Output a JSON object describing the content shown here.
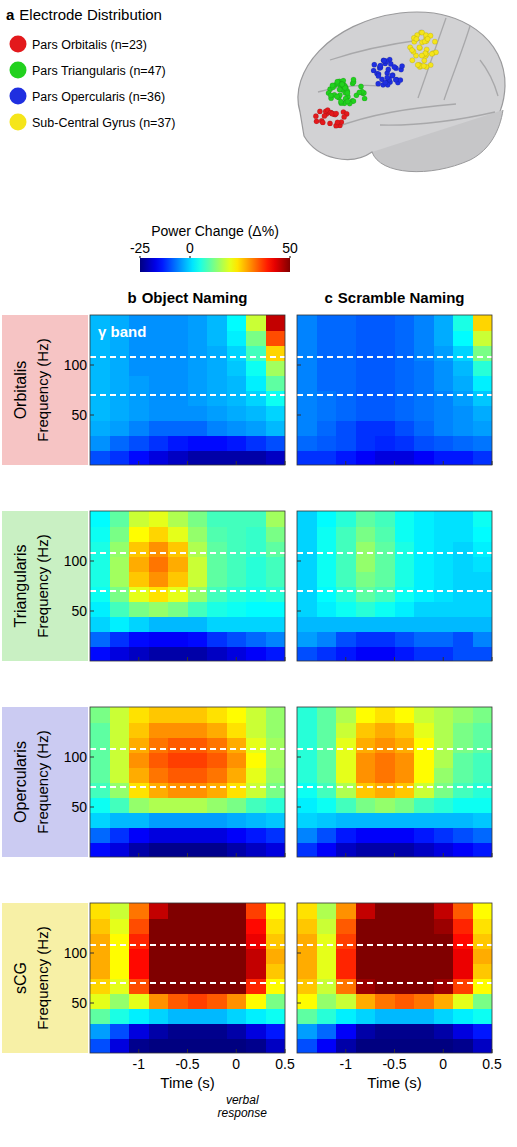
{
  "figure": {
    "panel_a": {
      "letter": "a",
      "title": "Electrode Distribution",
      "regions": [
        {
          "label": "Pars Orbitalis (n=23)",
          "color": "#e3191c",
          "electrodes": 23
        },
        {
          "label": "Pars Triangularis (n=47)",
          "color": "#22d11e",
          "electrodes": 47
        },
        {
          "label": "Pars Opercularis (n=36)",
          "color": "#1f2fe0",
          "electrodes": 36
        },
        {
          "label": "Sub-Central Gyrus (n=37)",
          "color": "#f5e51a",
          "electrodes": 37
        }
      ]
    },
    "colorbar": {
      "title": "Power Change (Δ%)",
      "range": [
        -25,
        50
      ],
      "ticks": [
        -25,
        0,
        50
      ]
    },
    "columns": [
      {
        "letter": "b",
        "title": "Object Naming"
      },
      {
        "letter": "c",
        "title": "Scramble Naming"
      }
    ],
    "rows": [
      {
        "label": "Orbitalis",
        "color": "#f6c4c4"
      },
      {
        "label": "Triangularis",
        "color": "#c9f0c3"
      },
      {
        "label": "Opercularis",
        "color": "#cbcbf2"
      },
      {
        "label": "sCG",
        "color": "#f7f0a6"
      }
    ],
    "ylabel": "Frequency (Hz)",
    "xlabel": "Time (s)",
    "xnote": "verbal response",
    "band_label": "γ band",
    "band_lines": [
      70,
      108
    ]
  },
  "chart_data": [
    {
      "type": "heatmap",
      "tick_labels": "y",
      "x": [
        -1.4,
        -1.2,
        -1.0,
        -0.8,
        -0.6,
        -0.4,
        -0.2,
        0,
        0.2,
        0.4
      ],
      "y": [
        7.5,
        22.5,
        37.5,
        52.5,
        67.5,
        82.5,
        97.5,
        112.5,
        127.5,
        142.5
      ],
      "xlim": [
        -1.5,
        0.5
      ],
      "ylim": [
        0,
        150
      ],
      "xticks": [
        -1,
        -0.5,
        0,
        0.5
      ],
      "yticks": [
        50,
        100
      ],
      "values": [
        [
          -10,
          -12,
          -15,
          -18,
          -20,
          -22,
          -22,
          -22,
          -22,
          -20
        ],
        [
          -5,
          -8,
          -10,
          -12,
          -14,
          -15,
          -15,
          -14,
          -12,
          -10
        ],
        [
          -3,
          -4,
          -6,
          -8,
          -8,
          -8,
          -6,
          -5,
          -4,
          -2
        ],
        [
          -2,
          -3,
          -4,
          -5,
          -5,
          -5,
          -4,
          -3,
          -2,
          0
        ],
        [
          -2,
          -3,
          -4,
          -5,
          -5,
          -4,
          -3,
          -2,
          0,
          4
        ],
        [
          -2,
          -3,
          -4,
          -5,
          -5,
          -4,
          -3,
          -2,
          2,
          10
        ],
        [
          -2,
          -3,
          -5,
          -5,
          -5,
          -4,
          -3,
          -1,
          4,
          15
        ],
        [
          -2,
          -3,
          -5,
          -5,
          -5,
          -4,
          -3,
          0,
          8,
          25
        ],
        [
          -2,
          -3,
          -5,
          -5,
          -5,
          -4,
          -2,
          2,
          12,
          35
        ],
        [
          -2,
          -3,
          -5,
          -5,
          -5,
          -4,
          -2,
          3,
          18,
          45
        ]
      ]
    },
    {
      "type": "heatmap",
      "tick_labels": false,
      "x": [
        -1.4,
        -1.2,
        -1.0,
        -0.8,
        -0.6,
        -0.4,
        -0.2,
        0,
        0.2,
        0.4
      ],
      "y": [
        7.5,
        22.5,
        37.5,
        52.5,
        67.5,
        82.5,
        97.5,
        112.5,
        127.5,
        142.5
      ],
      "xlim": [
        -1.5,
        0.5
      ],
      "ylim": [
        0,
        150
      ],
      "xticks": [
        -1,
        -0.5,
        0,
        0.5
      ],
      "yticks": [
        50,
        100
      ],
      "values": [
        [
          -12,
          -12,
          -14,
          -16,
          -18,
          -18,
          -16,
          -14,
          -14,
          -12
        ],
        [
          -8,
          -9,
          -10,
          -12,
          -13,
          -12,
          -10,
          -9,
          -8,
          -7
        ],
        [
          -6,
          -8,
          -10,
          -12,
          -12,
          -10,
          -8,
          -6,
          -5,
          -4
        ],
        [
          -6,
          -7,
          -8,
          -9,
          -9,
          -8,
          -7,
          -6,
          -5,
          -3
        ],
        [
          -6,
          -7,
          -8,
          -9,
          -9,
          -8,
          -7,
          -6,
          -4,
          -1
        ],
        [
          -6,
          -8,
          -8,
          -9,
          -9,
          -8,
          -7,
          -5,
          -3,
          2
        ],
        [
          -6,
          -8,
          -8,
          -9,
          -9,
          -8,
          -7,
          -5,
          -2,
          6
        ],
        [
          -6,
          -8,
          -8,
          -9,
          -9,
          -8,
          -6,
          -4,
          0,
          12
        ],
        [
          -6,
          -8,
          -8,
          -9,
          -9,
          -8,
          -6,
          -3,
          3,
          18
        ],
        [
          -6,
          -8,
          -8,
          -9,
          -9,
          -8,
          -6,
          -3,
          5,
          25
        ]
      ]
    },
    {
      "type": "heatmap",
      "tick_labels": "y",
      "x": [
        -1.4,
        -1.2,
        -1.0,
        -0.8,
        -0.6,
        -0.4,
        -0.2,
        0,
        0.2,
        0.4
      ],
      "y": [
        7.5,
        22.5,
        37.5,
        52.5,
        67.5,
        82.5,
        97.5,
        112.5,
        127.5,
        142.5
      ],
      "xlim": [
        -1.5,
        0.5
      ],
      "ylim": [
        0,
        150
      ],
      "xticks": [
        -1,
        -0.5,
        0,
        0.5
      ],
      "yticks": [
        50,
        100
      ],
      "values": [
        [
          -15,
          -18,
          -20,
          -22,
          -22,
          -22,
          -20,
          -18,
          -16,
          -14
        ],
        [
          -8,
          -12,
          -15,
          -16,
          -16,
          -15,
          -12,
          -10,
          -8,
          -6
        ],
        [
          0,
          2,
          0,
          -2,
          -2,
          -2,
          0,
          0,
          0,
          0
        ],
        [
          2,
          8,
          12,
          14,
          12,
          8,
          5,
          4,
          3,
          3
        ],
        [
          4,
          12,
          20,
          24,
          20,
          14,
          8,
          6,
          5,
          6
        ],
        [
          5,
          15,
          26,
          30,
          26,
          18,
          10,
          8,
          6,
          8
        ],
        [
          5,
          15,
          28,
          32,
          28,
          18,
          10,
          8,
          6,
          8
        ],
        [
          5,
          14,
          26,
          30,
          26,
          16,
          10,
          8,
          7,
          10
        ],
        [
          4,
          12,
          22,
          25,
          20,
          14,
          9,
          8,
          7,
          12
        ],
        [
          3,
          10,
          18,
          20,
          16,
          12,
          8,
          8,
          8,
          15
        ]
      ]
    },
    {
      "type": "heatmap",
      "tick_labels": false,
      "x": [
        -1.4,
        -1.2,
        -1.0,
        -0.8,
        -0.6,
        -0.4,
        -0.2,
        0,
        0.2,
        0.4
      ],
      "y": [
        7.5,
        22.5,
        37.5,
        52.5,
        67.5,
        82.5,
        97.5,
        112.5,
        127.5,
        142.5
      ],
      "xlim": [
        -1.5,
        0.5
      ],
      "ylim": [
        0,
        150
      ],
      "xticks": [
        -1,
        -0.5,
        0,
        0.5
      ],
      "yticks": [
        50,
        100
      ],
      "values": [
        [
          -10,
          -12,
          -14,
          -16,
          -16,
          -14,
          -12,
          -12,
          -10,
          -10
        ],
        [
          -4,
          -6,
          -10,
          -12,
          -12,
          -10,
          -8,
          -8,
          -10,
          -6
        ],
        [
          -2,
          -2,
          -2,
          -2,
          -2,
          -2,
          -2,
          -2,
          -2,
          -2
        ],
        [
          0,
          2,
          4,
          6,
          4,
          2,
          0,
          0,
          0,
          0
        ],
        [
          0,
          3,
          6,
          10,
          8,
          4,
          2,
          1,
          0,
          0
        ],
        [
          0,
          4,
          8,
          12,
          10,
          5,
          2,
          1,
          0,
          0
        ],
        [
          0,
          4,
          8,
          14,
          10,
          5,
          2,
          1,
          0,
          1
        ],
        [
          0,
          4,
          8,
          14,
          10,
          5,
          2,
          1,
          0,
          2
        ],
        [
          0,
          4,
          8,
          12,
          9,
          4,
          2,
          1,
          1,
          3
        ],
        [
          0,
          3,
          6,
          10,
          8,
          4,
          2,
          1,
          1,
          4
        ]
      ]
    },
    {
      "type": "heatmap",
      "tick_labels": "y",
      "x": [
        -1.4,
        -1.2,
        -1.0,
        -0.8,
        -0.6,
        -0.4,
        -0.2,
        0,
        0.2,
        0.4
      ],
      "y": [
        7.5,
        22.5,
        37.5,
        52.5,
        67.5,
        82.5,
        97.5,
        112.5,
        127.5,
        142.5
      ],
      "xlim": [
        -1.5,
        0.5
      ],
      "ylim": [
        0,
        150
      ],
      "xticks": [
        -1,
        -0.5,
        0,
        0.5
      ],
      "yticks": [
        50,
        100
      ],
      "values": [
        [
          -15,
          -18,
          -22,
          -24,
          -24,
          -24,
          -24,
          -22,
          -20,
          -18
        ],
        [
          -8,
          -12,
          -16,
          -18,
          -18,
          -18,
          -18,
          -16,
          -14,
          -12
        ],
        [
          0,
          -2,
          -2,
          -4,
          -4,
          -4,
          -4,
          -3,
          -2,
          -1
        ],
        [
          4,
          8,
          14,
          16,
          16,
          16,
          14,
          12,
          8,
          6
        ],
        [
          8,
          14,
          24,
          28,
          30,
          30,
          28,
          24,
          18,
          12
        ],
        [
          10,
          18,
          28,
          32,
          34,
          34,
          32,
          28,
          20,
          14
        ],
        [
          10,
          18,
          30,
          34,
          36,
          36,
          34,
          30,
          22,
          15
        ],
        [
          10,
          18,
          28,
          32,
          34,
          34,
          32,
          28,
          20,
          15
        ],
        [
          10,
          18,
          26,
          30,
          30,
          30,
          28,
          24,
          18,
          14
        ],
        [
          12,
          18,
          24,
          26,
          26,
          26,
          24,
          22,
          18,
          14
        ]
      ]
    },
    {
      "type": "heatmap",
      "tick_labels": false,
      "x": [
        -1.4,
        -1.2,
        -1.0,
        -0.8,
        -0.6,
        -0.4,
        -0.2,
        0,
        0.2,
        0.4
      ],
      "y": [
        7.5,
        22.5,
        37.5,
        52.5,
        67.5,
        82.5,
        97.5,
        112.5,
        127.5,
        142.5
      ],
      "xlim": [
        -1.5,
        0.5
      ],
      "ylim": [
        0,
        150
      ],
      "xticks": [
        -1,
        -0.5,
        0,
        0.5
      ],
      "yticks": [
        50,
        100
      ],
      "values": [
        [
          -12,
          -16,
          -20,
          -22,
          -22,
          -22,
          -20,
          -18,
          -16,
          -14
        ],
        [
          -6,
          -10,
          -14,
          -16,
          -16,
          -16,
          -14,
          -12,
          -10,
          -8
        ],
        [
          0,
          -1,
          -2,
          -2,
          -2,
          -2,
          -2,
          -2,
          -2,
          -1
        ],
        [
          2,
          4,
          8,
          12,
          14,
          12,
          8,
          6,
          4,
          4
        ],
        [
          4,
          8,
          16,
          26,
          28,
          26,
          18,
          12,
          8,
          6
        ],
        [
          6,
          10,
          20,
          30,
          32,
          30,
          22,
          14,
          10,
          8
        ],
        [
          6,
          10,
          20,
          30,
          32,
          30,
          22,
          16,
          10,
          8
        ],
        [
          6,
          10,
          20,
          28,
          30,
          28,
          22,
          16,
          12,
          10
        ],
        [
          6,
          10,
          18,
          26,
          28,
          26,
          20,
          16,
          12,
          10
        ],
        [
          6,
          10,
          16,
          22,
          24,
          22,
          18,
          16,
          14,
          12
        ]
      ]
    },
    {
      "type": "heatmap",
      "tick_labels": true,
      "x": [
        -1.4,
        -1.2,
        -1.0,
        -0.8,
        -0.6,
        -0.4,
        -0.2,
        0,
        0.2,
        0.4
      ],
      "y": [
        7.5,
        22.5,
        37.5,
        52.5,
        67.5,
        82.5,
        97.5,
        112.5,
        127.5,
        142.5
      ],
      "xlim": [
        -1.5,
        0.5
      ],
      "ylim": [
        0,
        150
      ],
      "xticks": [
        -1,
        -0.5,
        0,
        0.5
      ],
      "yticks": [
        50,
        100
      ],
      "values": [
        [
          -10,
          -18,
          -24,
          -26,
          -26,
          -26,
          -26,
          -26,
          -24,
          -20
        ],
        [
          -4,
          -10,
          -18,
          -22,
          -24,
          -24,
          -24,
          -22,
          -18,
          -14
        ],
        [
          10,
          5,
          2,
          0,
          -2,
          -2,
          -2,
          0,
          2,
          4
        ],
        [
          20,
          14,
          20,
          30,
          34,
          36,
          34,
          30,
          22,
          12
        ],
        [
          25,
          20,
          35,
          50,
          55,
          55,
          55,
          50,
          38,
          22
        ],
        [
          28,
          22,
          40,
          55,
          60,
          60,
          60,
          55,
          45,
          26
        ],
        [
          28,
          22,
          40,
          55,
          60,
          60,
          60,
          55,
          45,
          28
        ],
        [
          28,
          22,
          38,
          55,
          60,
          60,
          60,
          55,
          42,
          26
        ],
        [
          26,
          20,
          35,
          50,
          58,
          58,
          58,
          52,
          40,
          24
        ],
        [
          24,
          18,
          32,
          45,
          55,
          55,
          55,
          50,
          36,
          22
        ]
      ]
    },
    {
      "type": "heatmap",
      "tick_labels": "x",
      "x": [
        -1.4,
        -1.2,
        -1.0,
        -0.8,
        -0.6,
        -0.4,
        -0.2,
        0,
        0.2,
        0.4
      ],
      "y": [
        7.5,
        22.5,
        37.5,
        52.5,
        67.5,
        82.5,
        97.5,
        112.5,
        127.5,
        142.5
      ],
      "xlim": [
        -1.5,
        0.5
      ],
      "ylim": [
        0,
        150
      ],
      "xticks": [
        -1,
        -0.5,
        0,
        0.5
      ],
      "yticks": [
        50,
        100
      ],
      "values": [
        [
          -10,
          -16,
          -22,
          -26,
          -26,
          -26,
          -26,
          -26,
          -24,
          -20
        ],
        [
          -4,
          -8,
          -16,
          -22,
          -24,
          -24,
          -24,
          -22,
          -18,
          -14
        ],
        [
          10,
          6,
          2,
          0,
          -2,
          -2,
          -2,
          0,
          2,
          4
        ],
        [
          22,
          14,
          18,
          28,
          32,
          34,
          32,
          28,
          20,
          12
        ],
        [
          26,
          18,
          32,
          48,
          55,
          55,
          55,
          48,
          36,
          22
        ],
        [
          28,
          20,
          38,
          55,
          60,
          60,
          58,
          52,
          42,
          26
        ],
        [
          28,
          20,
          38,
          55,
          60,
          60,
          58,
          52,
          42,
          28
        ],
        [
          28,
          20,
          36,
          55,
          60,
          60,
          58,
          50,
          40,
          26
        ],
        [
          26,
          18,
          34,
          50,
          58,
          58,
          55,
          48,
          38,
          24
        ],
        [
          24,
          16,
          30,
          45,
          55,
          55,
          52,
          45,
          34,
          22
        ]
      ]
    }
  ]
}
